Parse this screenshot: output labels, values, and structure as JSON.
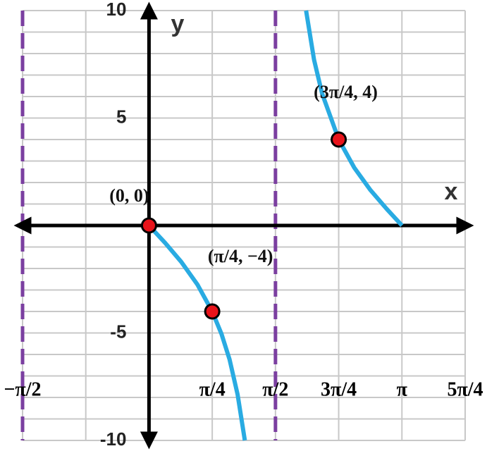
{
  "chart_data": {
    "type": "line",
    "x_label": "x",
    "y_label": "y",
    "xlim": [
      -1.5708,
      3.927
    ],
    "ylim": [
      -10,
      10
    ],
    "xticks": [
      {
        "value": -1.5708,
        "label": "−π/2"
      },
      {
        "value": 0.7854,
        "label": "π/4"
      },
      {
        "value": 1.5708,
        "label": "π/2"
      },
      {
        "value": 2.3562,
        "label": "3π/4"
      },
      {
        "value": 3.1416,
        "label": "π"
      },
      {
        "value": 3.927,
        "label": "5π/4"
      }
    ],
    "yticks": [
      -10,
      -5,
      5,
      10
    ],
    "xgrid": [
      -1.5708,
      -0.7854,
      0,
      0.7854,
      1.5708,
      2.3562,
      3.1416,
      3.927
    ],
    "ygrid": [
      -10,
      -9,
      -8,
      -7,
      -6,
      -5,
      -4,
      -3,
      -2,
      -1,
      0,
      1,
      2,
      3,
      4,
      5,
      6,
      7,
      8,
      9,
      10
    ],
    "grid": true,
    "grid_color": "#c8c8c8",
    "series": [
      {
        "color": "#29abe2",
        "x": [
          0,
          0.2,
          0.4,
          0.6,
          0.7854,
          0.9,
          1.0,
          1.1,
          1.19,
          null,
          1.951,
          2.05,
          2.15,
          2.3562,
          2.55,
          2.75,
          2.95,
          3.1416
        ],
        "values": [
          0,
          -0.81,
          -1.69,
          -2.74,
          -4,
          -5.04,
          -6.23,
          -7.86,
          -10,
          null,
          10,
          7.71,
          6.14,
          4,
          2.69,
          1.65,
          0.78,
          0
        ]
      }
    ],
    "points": {
      "color": "#e8141b",
      "x": [
        0,
        0.7854,
        2.3562
      ],
      "values": [
        0,
        -4,
        4
      ],
      "labels": [
        "(0, 0)",
        "(π/4, −4)",
        "(3π/4, 4)"
      ]
    },
    "asymptotes": {
      "color": "#7b3fa0",
      "x": [
        -1.5708,
        1.5708
      ]
    }
  }
}
